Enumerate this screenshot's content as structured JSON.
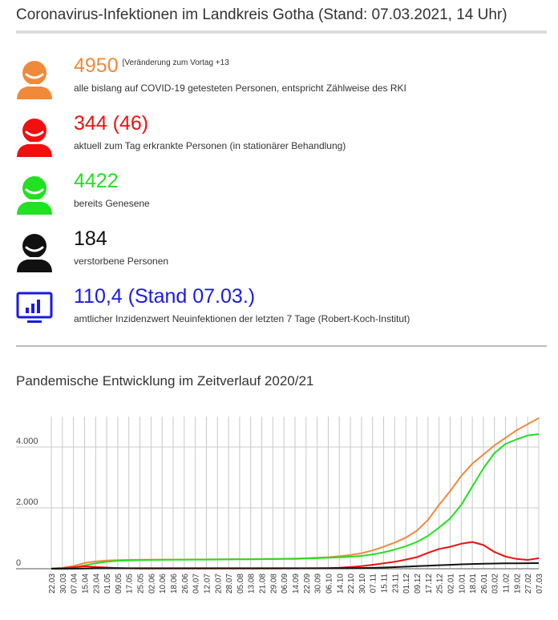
{
  "header": {
    "title": "Coronavirus-Infektionen im Landkreis Gotha (Stand: 07.03.2021, 14 Uhr)"
  },
  "stats": [
    {
      "value": "4950",
      "note": "[Veränderung zum Vortag +13",
      "desc": "alle bislang auf COVID-19 getesteten Personen, entspricht Zählweise des RKI",
      "color": "#f0893a",
      "icon": "person-icon"
    },
    {
      "value": "344 (46)",
      "note": "",
      "desc": "aktuell zum Tag erkrankte Personen (in stationärer Behandlung)",
      "color": "#f01010",
      "icon": "person-icon"
    },
    {
      "value": "4422",
      "note": "",
      "desc": "bereits Genesene",
      "color": "#22e022",
      "icon": "person-icon"
    },
    {
      "value": "184",
      "note": "",
      "desc": "verstorbene Personen",
      "color": "#111111",
      "icon": "person-icon"
    },
    {
      "value": "110,4 (Stand 07.03.)",
      "note": "",
      "desc": "amtlicher Inzidenzwert Neuinfektionen der letzten 7 Tage (Robert-Koch-Institut)",
      "color": "#1a1ae0",
      "icon": "monitor-chart-icon"
    }
  ],
  "chart_title": "Pandemische Entwicklung im Zeitverlauf 2020/21",
  "chart_data": {
    "type": "line",
    "title": "Pandemische Entwicklung im Zeitverlauf 2020/21",
    "xlabel": "",
    "ylabel": "",
    "ylim": [
      0,
      5000
    ],
    "yticks": [
      0,
      2000,
      4000
    ],
    "ytick_labels": [
      "0",
      "2.000",
      "4.000"
    ],
    "grid": true,
    "categories": [
      "22.03",
      "30.03",
      "07.04",
      "15.04",
      "23.04",
      "01.05",
      "09.05",
      "17.05",
      "25.05",
      "02.06",
      "10.06",
      "18.06",
      "26.06",
      "04.07",
      "12.07",
      "20.07",
      "28.07",
      "05.08",
      "13.08",
      "21.08",
      "29.08",
      "06.09",
      "14.09",
      "22.09",
      "30.09",
      "06.10",
      "14.10",
      "22.10",
      "30.10",
      "07.11",
      "15.11",
      "23.11",
      "01.12",
      "09.12",
      "17.12",
      "25.12",
      "02.01",
      "10.01",
      "18.01",
      "26.01",
      "03.02",
      "11.02",
      "19.02",
      "27.02",
      "07.03"
    ],
    "series": [
      {
        "color": "#f0893a",
        "values": [
          5,
          30,
          90,
          190,
          240,
          270,
          285,
          290,
          295,
          298,
          300,
          302,
          303,
          305,
          307,
          310,
          312,
          315,
          318,
          322,
          326,
          330,
          335,
          345,
          360,
          380,
          410,
          450,
          510,
          600,
          720,
          860,
          1020,
          1250,
          1600,
          2100,
          2550,
          3050,
          3450,
          3750,
          4050,
          4300,
          4550,
          4750,
          4950
        ]
      },
      {
        "color": "#22e022",
        "values": [
          0,
          10,
          40,
          110,
          180,
          230,
          260,
          275,
          285,
          290,
          293,
          295,
          297,
          299,
          301,
          303,
          305,
          307,
          310,
          313,
          316,
          320,
          325,
          333,
          345,
          360,
          375,
          395,
          420,
          470,
          540,
          630,
          740,
          880,
          1080,
          1350,
          1650,
          2100,
          2700,
          3300,
          3800,
          4100,
          4250,
          4380,
          4422
        ]
      },
      {
        "color": "#f01010",
        "values": [
          5,
          20,
          50,
          80,
          60,
          40,
          25,
          12,
          8,
          5,
          5,
          5,
          4,
          4,
          5,
          6,
          6,
          7,
          8,
          9,
          9,
          10,
          10,
          14,
          16,
          20,
          32,
          55,
          85,
          130,
          180,
          230,
          300,
          380,
          520,
          650,
          720,
          820,
          880,
          780,
          550,
          400,
          320,
          290,
          344
        ]
      },
      {
        "color": "#111111",
        "values": [
          0,
          1,
          3,
          8,
          12,
          15,
          16,
          17,
          17,
          17,
          17,
          17,
          17,
          17,
          17,
          17,
          17,
          17,
          17,
          17,
          17,
          17,
          17,
          17,
          17,
          17,
          18,
          20,
          24,
          30,
          40,
          52,
          68,
          85,
          100,
          115,
          130,
          145,
          155,
          162,
          170,
          175,
          178,
          182,
          184
        ]
      }
    ]
  }
}
